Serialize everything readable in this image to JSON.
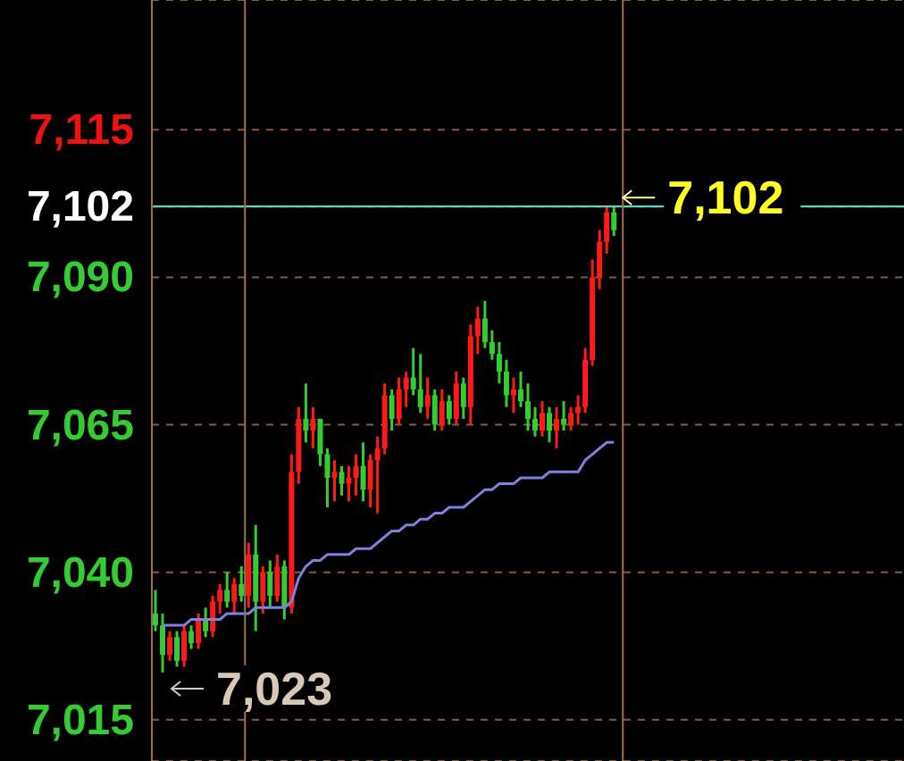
{
  "chart_data": {
    "type": "candlestick",
    "categories": [
      null,
      null,
      null,
      null,
      null,
      null,
      null,
      null,
      null,
      null,
      null,
      null,
      null,
      null,
      null,
      null,
      null,
      null,
      null,
      null,
      null,
      null,
      null,
      null,
      null,
      null,
      null,
      null,
      null,
      null,
      null,
      null,
      null,
      null,
      null,
      null,
      null,
      null,
      null,
      null,
      null,
      null,
      null,
      null,
      null,
      null,
      null,
      null,
      null,
      null,
      null,
      null,
      null,
      null,
      null,
      null,
      null,
      null,
      null,
      null,
      null,
      null,
      null,
      null,
      null,
      null,
      null,
      null,
      null,
      null,
      null,
      null,
      null,
      null,
      null,
      null,
      null,
      null,
      null,
      null,
      null,
      null,
      null,
      null,
      null,
      null,
      null,
      null,
      null,
      null,
      null,
      null,
      null,
      null,
      null,
      null,
      null,
      null,
      null,
      null,
      null,
      null,
      null,
      null,
      null
    ],
    "ohlc": [
      [
        7033,
        7037,
        7030,
        7031
      ],
      [
        7031,
        7033,
        7023,
        7026
      ],
      [
        7026,
        7030,
        7025,
        7029
      ],
      [
        7029,
        7030,
        7024,
        7025
      ],
      [
        7025,
        7031,
        7024,
        7030
      ],
      [
        7030,
        7031,
        7027,
        7028
      ],
      [
        7028,
        7033,
        7027,
        7032
      ],
      [
        7032,
        7034,
        7029,
        7030
      ],
      [
        7030,
        7036,
        7029,
        7035
      ],
      [
        7035,
        7038,
        7033,
        7037
      ],
      [
        7037,
        7040,
        7034,
        7035
      ],
      [
        7035,
        7039,
        7033,
        7038
      ],
      [
        7038,
        7041,
        7035,
        7036
      ],
      [
        7036,
        7045,
        7034,
        7043
      ],
      [
        7043,
        7048,
        7030,
        7035
      ],
      [
        7035,
        7041,
        7033,
        7040
      ],
      [
        7040,
        7042,
        7034,
        7036
      ],
      [
        7036,
        7043,
        7035,
        7041
      ],
      [
        7041,
        7042,
        7032,
        7034
      ],
      [
        7034,
        7060,
        7033,
        7057
      ],
      [
        7057,
        7068,
        7055,
        7066
      ],
      [
        7066,
        7072,
        7062,
        7064
      ],
      [
        7064,
        7068,
        7061,
        7066
      ],
      [
        7066,
        7066,
        7058,
        7060
      ],
      [
        7060,
        7061,
        7051,
        7056
      ],
      [
        7056,
        7059,
        7052,
        7057
      ],
      [
        7057,
        7058,
        7053,
        7055
      ],
      [
        7055,
        7058,
        7052,
        7056
      ],
      [
        7056,
        7060,
        7053,
        7058
      ],
      [
        7058,
        7062,
        7052,
        7054
      ],
      [
        7054,
        7060,
        7051,
        7059
      ],
      [
        7059,
        7063,
        7050,
        7061
      ],
      [
        7061,
        7072,
        7060,
        7070
      ],
      [
        7070,
        7071,
        7064,
        7066
      ],
      [
        7066,
        7073,
        7065,
        7071
      ],
      [
        7071,
        7074,
        7068,
        7073
      ],
      [
        7073,
        7078,
        7070,
        7071
      ],
      [
        7071,
        7077,
        7067,
        7068
      ],
      [
        7068,
        7073,
        7066,
        7070
      ],
      [
        7070,
        7071,
        7064,
        7065
      ],
      [
        7065,
        7071,
        7064,
        7069
      ],
      [
        7069,
        7070,
        7065,
        7066
      ],
      [
        7066,
        7074,
        7065,
        7072
      ],
      [
        7072,
        7073,
        7066,
        7068
      ],
      [
        7068,
        7082,
        7065,
        7080
      ],
      [
        7080,
        7085,
        7077,
        7083
      ],
      [
        7083,
        7086,
        7078,
        7079
      ],
      [
        7079,
        7081,
        7076,
        7077
      ],
      [
        7077,
        7079,
        7072,
        7074
      ],
      [
        7074,
        7076,
        7068,
        7070
      ],
      [
        7070,
        7073,
        7067,
        7071
      ],
      [
        7071,
        7074,
        7068,
        7069
      ],
      [
        7069,
        7072,
        7064,
        7066
      ],
      [
        7066,
        7068,
        7063,
        7064
      ],
      [
        7064,
        7069,
        7063,
        7067
      ],
      [
        7067,
        7068,
        7062,
        7064
      ],
      [
        7064,
        7068,
        7061,
        7066
      ],
      [
        7066,
        7069,
        7064,
        7065
      ],
      [
        7065,
        7068,
        7064,
        7067
      ],
      [
        7067,
        7070,
        7065,
        7068
      ],
      [
        7068,
        7078,
        7067,
        7076
      ],
      [
        7076,
        7093,
        7075,
        7090
      ],
      [
        7090,
        7098,
        7088,
        7096
      ],
      [
        7096,
        7102,
        7094,
        7101
      ],
      [
        7101,
        7102,
        7097,
        7098
      ],
      null,
      null,
      null,
      null,
      null,
      null,
      null,
      null,
      null,
      null,
      null,
      null,
      null,
      null,
      null,
      null,
      null,
      null,
      null,
      null,
      null,
      null,
      null,
      null,
      null,
      null,
      null,
      null,
      null,
      null,
      null,
      null,
      null,
      null,
      null,
      null,
      null,
      null,
      null,
      null
    ],
    "colors": [
      "#33cc33",
      "#33cc33",
      "#ff1a1a",
      "#33cc33",
      "#ff1a1a",
      "#33cc33",
      "#ff1a1a",
      "#33cc33",
      "#ff1a1a",
      "#ff1a1a",
      "#33cc33",
      "#ff1a1a",
      "#33cc33",
      "#ff1a1a",
      "#33cc33",
      "#ff1a1a",
      "#33cc33",
      "#ff1a1a",
      "#33cc33",
      "#ff1a1a",
      "#ff1a1a",
      "#33cc33",
      "#ff1a1a",
      "#33cc33",
      "#33cc33",
      "#ff1a1a",
      "#33cc33",
      "#ff1a1a",
      "#ff1a1a",
      "#33cc33",
      "#ff1a1a",
      "#ff1a1a",
      "#ff1a1a",
      "#33cc33",
      "#ff1a1a",
      "#ff1a1a",
      "#33cc33",
      "#33cc33",
      "#ff1a1a",
      "#33cc33",
      "#ff1a1a",
      "#33cc33",
      "#ff1a1a",
      "#33cc33",
      "#ff1a1a",
      "#ff1a1a",
      "#33cc33",
      "#33cc33",
      "#33cc33",
      "#33cc33",
      "#ff1a1a",
      "#33cc33",
      "#33cc33",
      "#33cc33",
      "#ff1a1a",
      "#33cc33",
      "#ff1a1a",
      "#33cc33",
      "#ff1a1a",
      "#ff1a1a",
      "#ff1a1a",
      "#ff1a1a",
      "#ff1a1a",
      "#ff1a1a",
      "#33cc33",
      null,
      null,
      null,
      null,
      null,
      null,
      null,
      null,
      null,
      null,
      null,
      null,
      null,
      null,
      null,
      null,
      null,
      null,
      null,
      null,
      null,
      null,
      null,
      null,
      null,
      null,
      null,
      null,
      null,
      null,
      null,
      null,
      null,
      null,
      null,
      null,
      null,
      null,
      null,
      null
    ],
    "series": [
      {
        "type": "line",
        "color": "#8080e0",
        "values": [
          null,
          7031,
          7031,
          7031,
          7031,
          7032,
          7032,
          7032,
          7032,
          7032,
          7033,
          7033,
          7033,
          7033,
          7034,
          7034,
          7034,
          7034,
          7034,
          7035,
          7039,
          7041,
          7042,
          7042,
          7043,
          7043,
          7043,
          7043,
          7044,
          7044,
          7044,
          7045,
          7046,
          7047,
          7047,
          7048,
          7048,
          7049,
          7049,
          7050,
          7050,
          7051,
          7051,
          7051,
          7052,
          7053,
          7054,
          7054,
          7055,
          7055,
          7055,
          7056,
          7056,
          7056,
          7056,
          7057,
          7057,
          7057,
          7057,
          7057,
          7059,
          7060,
          7061,
          7062,
          7062,
          null,
          null,
          null,
          null,
          null,
          null,
          null,
          null,
          null,
          null,
          null,
          null,
          null,
          null,
          null,
          null,
          null,
          null,
          null,
          null,
          null,
          null,
          null,
          null,
          null,
          null,
          null,
          null,
          null,
          null,
          null,
          null,
          null,
          null,
          null,
          null,
          null,
          null,
          null,
          null
        ]
      }
    ],
    "ylim": [
      7008,
      7137
    ],
    "yticks": [
      {
        "value": 7015,
        "label": "7,015"
      },
      {
        "value": 7040,
        "label": "7,040"
      },
      {
        "value": 7065,
        "label": "7,065"
      },
      {
        "value": 7090,
        "label": "7,090"
      },
      {
        "value": 7102,
        "label": "7,102"
      },
      {
        "value": 7115,
        "label": "7,115"
      }
    ],
    "grid": "y",
    "ref_lines": [
      {
        "axis": "y",
        "value": 7102,
        "color": "#66cccc"
      }
    ],
    "annotations": [
      {
        "text": "7,102",
        "y": 7102
      },
      "7,023"
    ]
  }
}
